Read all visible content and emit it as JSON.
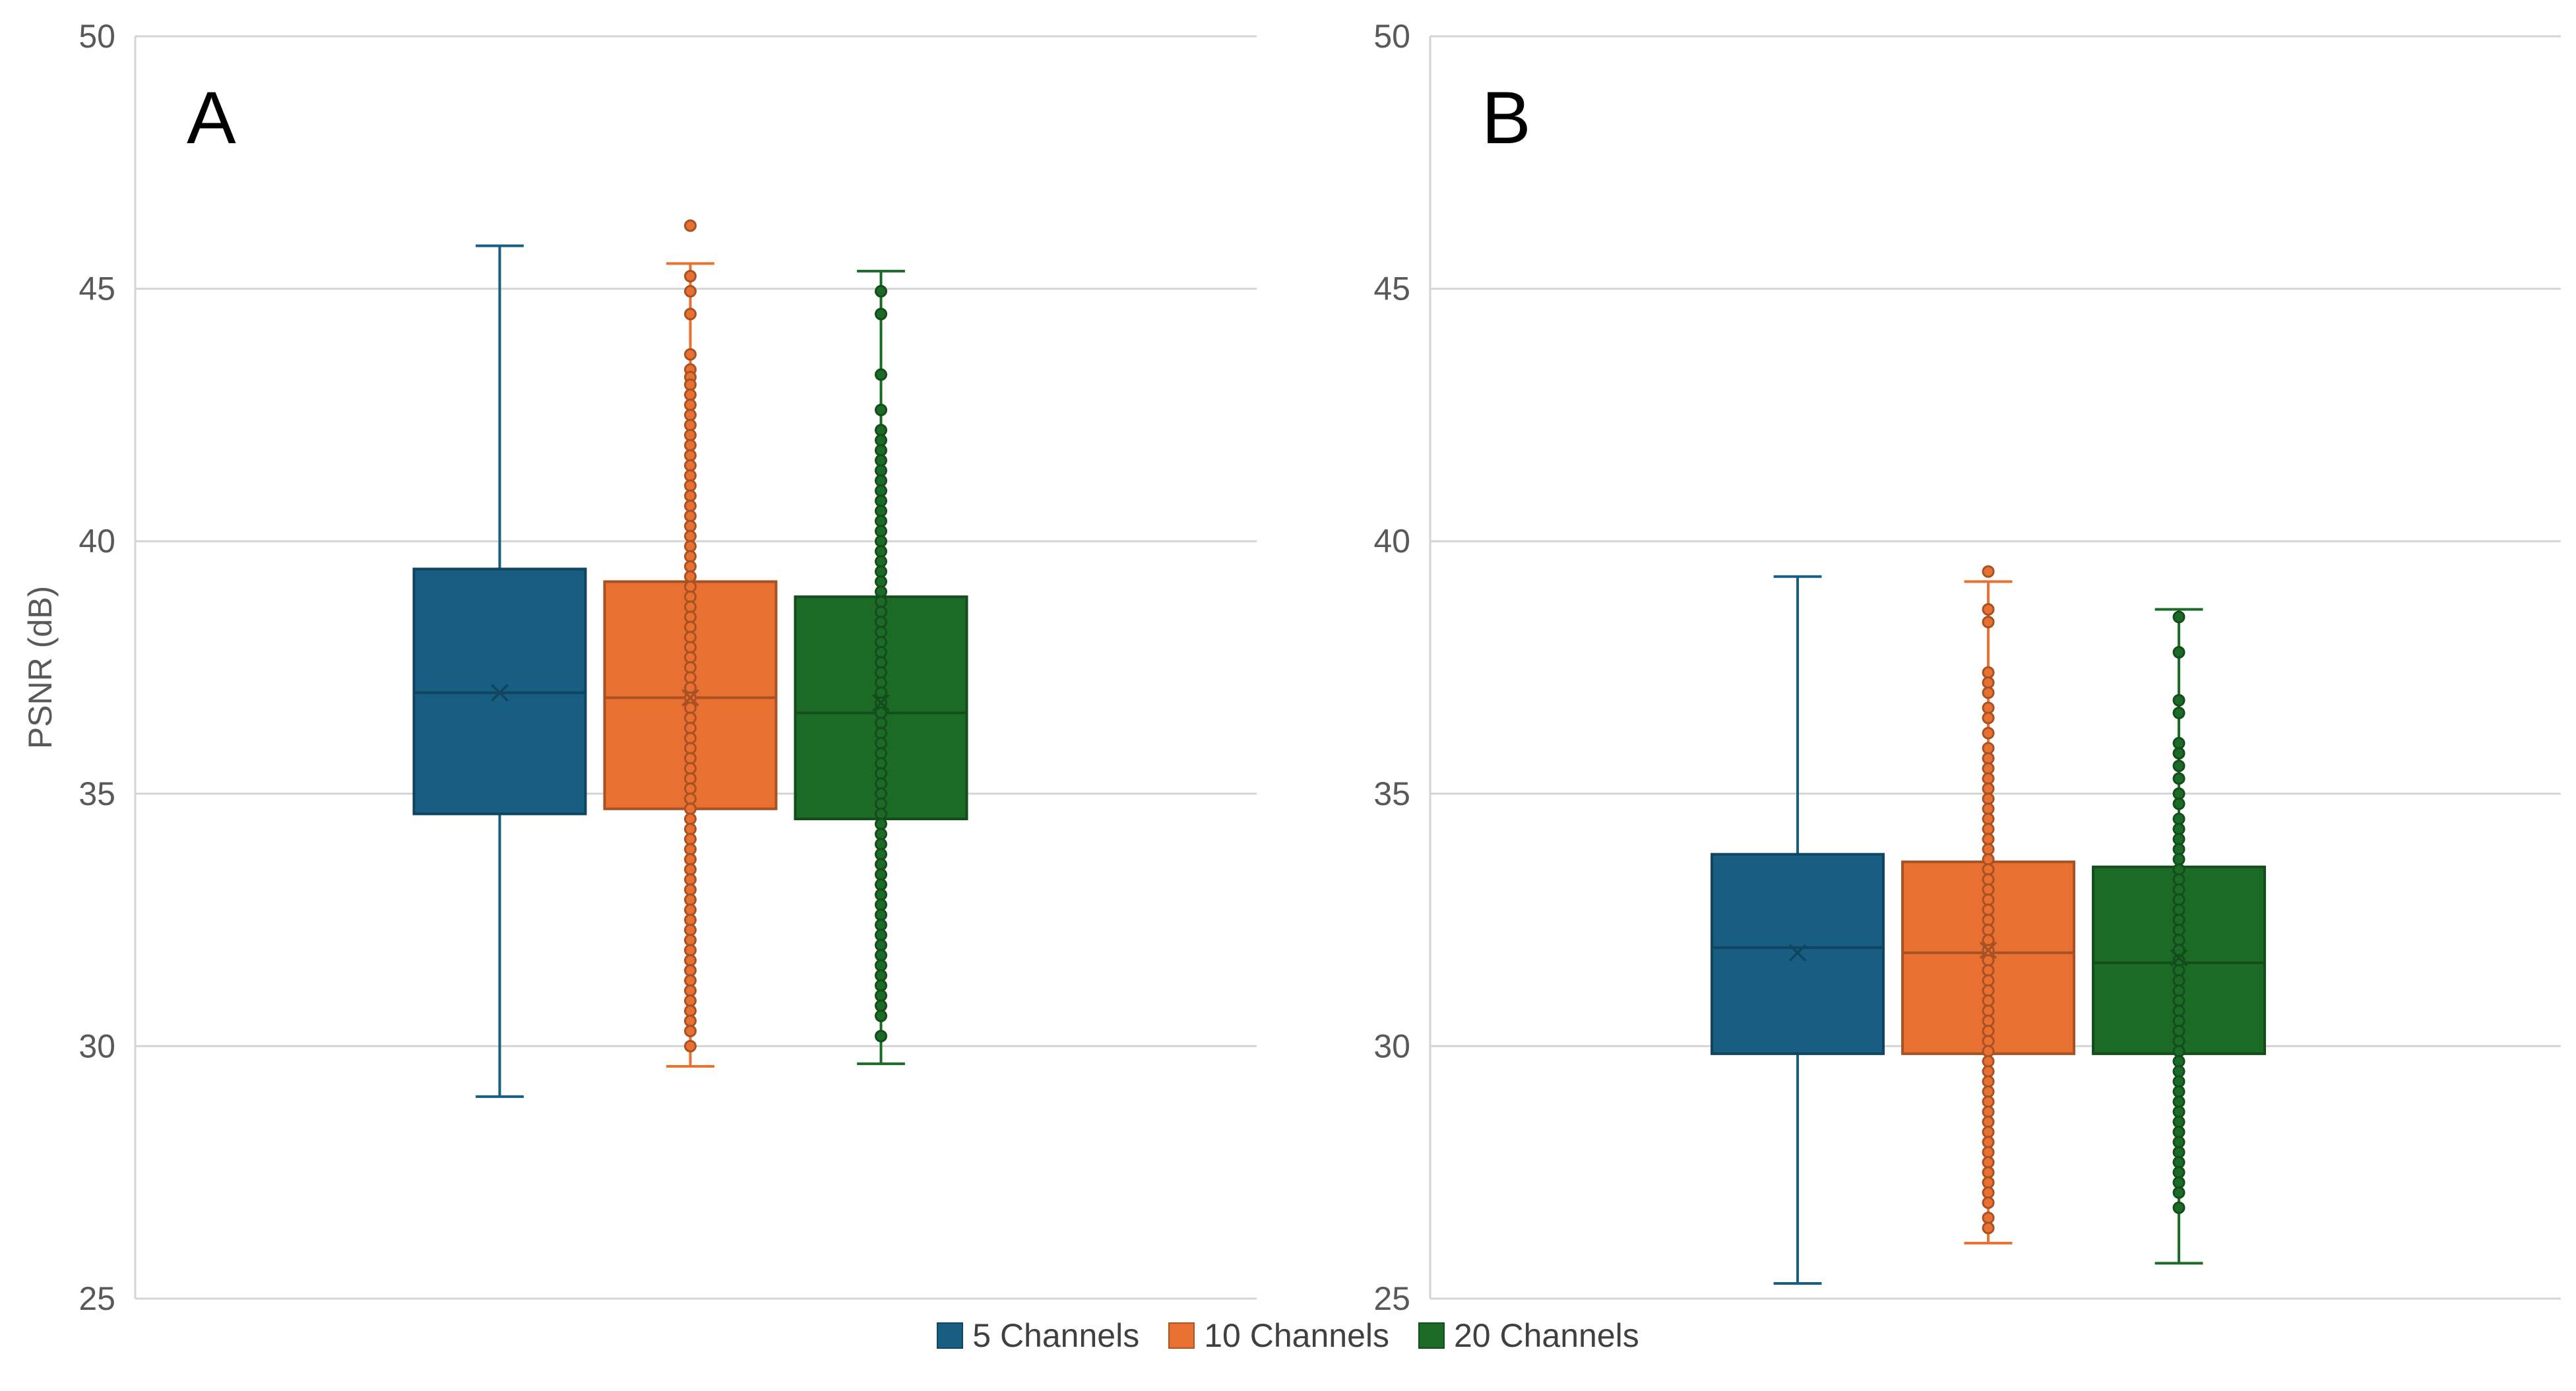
{
  "chart_data": [
    {
      "type": "box",
      "panel_label": "A",
      "ylabel": "PSNR (dB)",
      "ylim": [
        25,
        50
      ],
      "yticks": [
        25,
        30,
        35,
        40,
        45,
        50
      ],
      "grid": true,
      "series": [
        {
          "name": "5 Channels",
          "color": "#175E82",
          "whisker_low": 29.0,
          "q1": 34.6,
          "median": 37.0,
          "q3": 39.45,
          "whisker_high": 45.85,
          "mean": 37.0,
          "points": []
        },
        {
          "name": "10 Channels",
          "color": "#E87132",
          "whisker_low": 29.6,
          "q1": 34.7,
          "median": 36.9,
          "q3": 39.2,
          "whisker_high": 45.5,
          "mean": 36.9,
          "points": [
            46.25,
            45.25,
            44.95,
            44.5,
            43.7,
            43.4,
            43.25,
            43.1,
            42.9,
            42.7,
            42.5,
            42.3,
            42.1,
            41.9,
            41.7,
            41.5,
            41.3,
            41.1,
            40.9,
            40.7,
            40.5,
            40.3,
            40.1,
            39.9,
            39.7,
            39.5,
            39.3,
            39.1,
            38.9,
            38.7,
            38.5,
            38.3,
            38.1,
            37.9,
            37.7,
            37.5,
            37.3,
            37.1,
            36.9,
            36.7,
            36.5,
            36.3,
            36.1,
            35.9,
            35.7,
            35.5,
            35.3,
            35.1,
            34.9,
            34.7,
            34.5,
            34.3,
            34.1,
            33.9,
            33.7,
            33.5,
            33.3,
            33.1,
            32.9,
            32.7,
            32.5,
            32.3,
            32.1,
            31.9,
            31.7,
            31.5,
            31.3,
            31.1,
            30.9,
            30.7,
            30.5,
            30.3,
            30.0
          ]
        },
        {
          "name": "20 Channels",
          "color": "#1B6B27",
          "whisker_low": 29.65,
          "q1": 34.5,
          "median": 36.6,
          "q3": 38.9,
          "whisker_high": 45.35,
          "mean": 36.8,
          "points": [
            44.95,
            44.5,
            43.3,
            42.6,
            42.2,
            42.0,
            41.8,
            41.6,
            41.4,
            41.2,
            41.0,
            40.8,
            40.6,
            40.4,
            40.2,
            40.0,
            39.8,
            39.6,
            39.4,
            39.2,
            39.0,
            38.8,
            38.6,
            38.4,
            38.2,
            38.0,
            37.8,
            37.6,
            37.4,
            37.2,
            37.0,
            36.8,
            36.6,
            36.4,
            36.2,
            36.0,
            35.8,
            35.6,
            35.4,
            35.2,
            35.0,
            34.8,
            34.6,
            34.4,
            34.2,
            34.0,
            33.8,
            33.6,
            33.4,
            33.2,
            33.0,
            32.8,
            32.6,
            32.4,
            32.2,
            32.0,
            31.8,
            31.6,
            31.4,
            31.2,
            31.0,
            30.8,
            30.6,
            30.2
          ]
        }
      ]
    },
    {
      "type": "box",
      "panel_label": "B",
      "ylabel": "",
      "ylim": [
        25,
        50
      ],
      "yticks": [
        25,
        30,
        35,
        40,
        45,
        50
      ],
      "grid": true,
      "series": [
        {
          "name": "5 Channels",
          "color": "#175E82",
          "whisker_low": 25.3,
          "q1": 29.85,
          "median": 31.95,
          "q3": 33.8,
          "whisker_high": 39.3,
          "mean": 31.85,
          "points": []
        },
        {
          "name": "10 Channels",
          "color": "#E87132",
          "whisker_low": 26.1,
          "q1": 29.85,
          "median": 31.85,
          "q3": 33.65,
          "whisker_high": 39.2,
          "mean": 31.9,
          "points": [
            39.4,
            38.65,
            38.4,
            37.4,
            37.2,
            37.0,
            36.7,
            36.5,
            36.2,
            35.9,
            35.7,
            35.5,
            35.3,
            35.1,
            34.9,
            34.7,
            34.5,
            34.3,
            34.1,
            33.9,
            33.7,
            33.5,
            33.3,
            33.1,
            32.9,
            32.7,
            32.5,
            32.3,
            32.1,
            31.9,
            31.7,
            31.5,
            31.3,
            31.1,
            30.9,
            30.7,
            30.5,
            30.3,
            30.1,
            29.9,
            29.7,
            29.5,
            29.3,
            29.1,
            28.9,
            28.7,
            28.5,
            28.3,
            28.1,
            27.9,
            27.7,
            27.5,
            27.3,
            27.1,
            26.9,
            26.6,
            26.4
          ]
        },
        {
          "name": "20 Channels",
          "color": "#1B6B27",
          "whisker_low": 25.7,
          "q1": 29.85,
          "median": 31.65,
          "q3": 33.55,
          "whisker_high": 38.65,
          "mean": 31.75,
          "points": [
            38.5,
            37.8,
            36.85,
            36.6,
            36.0,
            35.8,
            35.55,
            35.3,
            35.0,
            34.8,
            34.5,
            34.3,
            34.1,
            33.9,
            33.7,
            33.5,
            33.3,
            33.1,
            32.9,
            32.7,
            32.5,
            32.3,
            32.1,
            31.9,
            31.7,
            31.5,
            31.3,
            31.1,
            30.9,
            30.7,
            30.5,
            30.3,
            30.1,
            29.9,
            29.7,
            29.5,
            29.3,
            29.1,
            28.9,
            28.7,
            28.5,
            28.3,
            28.1,
            27.9,
            27.7,
            27.5,
            27.3,
            27.1,
            26.8
          ]
        }
      ]
    }
  ],
  "legend": [
    {
      "label": "5 Channels",
      "color": "#175E82"
    },
    {
      "label": "10 Channels",
      "color": "#E87132"
    },
    {
      "label": "20 Channels",
      "color": "#1B6B27"
    }
  ]
}
